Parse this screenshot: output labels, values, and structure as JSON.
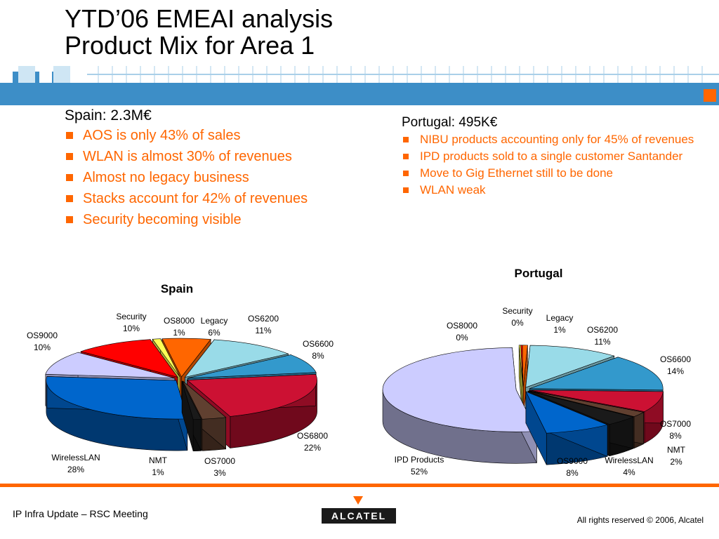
{
  "slide": {
    "title_line1": "YTD’06 EMEAI analysis",
    "title_line2": "Product Mix for Area 1"
  },
  "spain": {
    "heading": "Spain: 2.3M€",
    "bullets": [
      "AOS is only 43% of sales",
      "WLAN is almost 30% of revenues",
      "Almost no legacy business",
      "Stacks account for 42% of revenues",
      "Security becoming visible"
    ]
  },
  "portugal": {
    "heading": "Portugal: 495K€",
    "bullets": [
      "NIBU products accounting only for 45% of revenues",
      "IPD products sold to a single customer Santander",
      "Move to Gig Ethernet still to be done",
      "WLAN weak"
    ]
  },
  "colors": {
    "accent": "#ff6600",
    "header_bar": "#3d8ec7"
  },
  "chart_data": [
    {
      "type": "pie",
      "title": "Spain",
      "categories": [
        "Legacy",
        "OS6200",
        "OS6600",
        "OS6800",
        "OS7000",
        "NMT",
        "WirelessLAN",
        "OS9000",
        "Security",
        "OS8000"
      ],
      "values": [
        6,
        11,
        8,
        22,
        3,
        1,
        28,
        10,
        10,
        1
      ],
      "labels": [
        "6%",
        "11%",
        "8%",
        "22%",
        "3%",
        "1%",
        "28%",
        "10%",
        "10%",
        "1%"
      ],
      "colors": [
        "#ff6600",
        "#99dbe8",
        "#3399cc",
        "#cc1133",
        "#604030",
        "#1a1a1a",
        "#0066cc",
        "#ccccff",
        "#ff0000",
        "#ffff55"
      ]
    },
    {
      "type": "pie",
      "title": "Portugal",
      "categories": [
        "Legacy",
        "OS6200",
        "OS6600",
        "OS7000",
        "NMT",
        "WirelessLAN",
        "OS9000",
        "IPD Products",
        "OS8000",
        "Security"
      ],
      "values": [
        1,
        11,
        14,
        8,
        2,
        4,
        8,
        52,
        0,
        0
      ],
      "labels": [
        "1%",
        "11%",
        "14%",
        "8%",
        "2%",
        "4%",
        "8%",
        "52%",
        "0%",
        "0%"
      ],
      "colors": [
        "#ff6600",
        "#99dbe8",
        "#3399cc",
        "#cc1133",
        "#604030",
        "#1a1a1a",
        "#0066cc",
        "#ccccff",
        "#ffff55",
        "#ff0000"
      ]
    }
  ],
  "footer": {
    "left": "IP Infra Update – RSC Meeting",
    "logo": "ALCATEL",
    "right": "All rights reserved © 2006, Alcatel"
  }
}
